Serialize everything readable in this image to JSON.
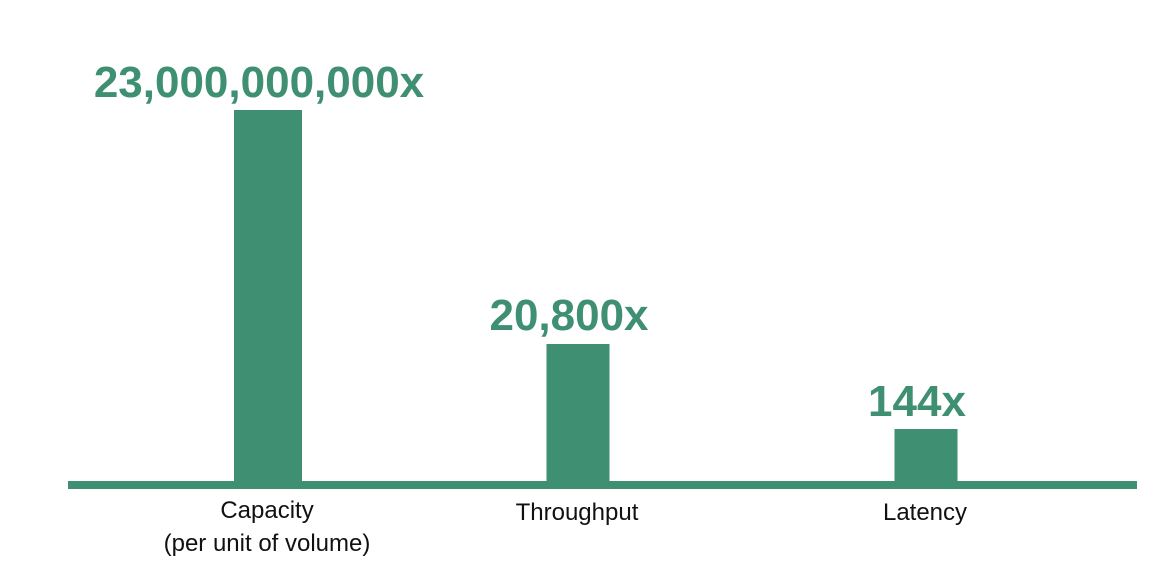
{
  "chart_data": {
    "type": "bar",
    "scale": "non-linear (bar heights not proportional to values)",
    "categories": [
      {
        "label": "Capacity",
        "sublabel": "(per unit of volume)"
      },
      {
        "label": "Throughput",
        "sublabel": ""
      },
      {
        "label": "Latency",
        "sublabel": ""
      }
    ],
    "values": [
      23000000000,
      20800,
      144
    ],
    "value_labels": [
      "23,000,000,000x",
      "20,800x",
      "144x"
    ],
    "title": "",
    "xlabel": "",
    "ylabel": "",
    "grid": false,
    "legend": "none",
    "colors": {
      "bar": "#3F8F72",
      "label": "#3F8F72",
      "baseline": "#3F8F72",
      "category_text": "#111111"
    }
  }
}
